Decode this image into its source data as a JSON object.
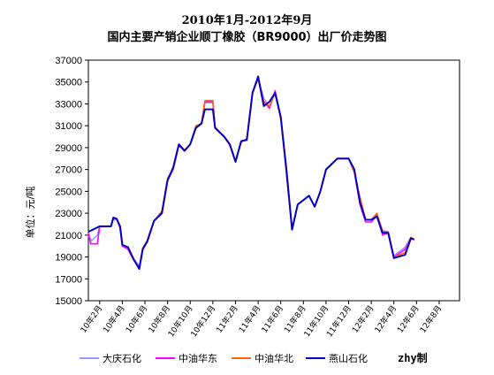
{
  "chart_data": {
    "type": "line",
    "title": "2010年1月-2012年9月",
    "subtitle": "国内主要产销企业顺丁橡胶（BR9000）出厂价走势图",
    "ylabel": "单位：元/吨",
    "xlabel": "",
    "ylim": [
      15000,
      37000
    ],
    "yticks": [
      "37000",
      "35000",
      "33000",
      "31000",
      "29000",
      "27000",
      "25000",
      "23000",
      "21000",
      "19000",
      "17000",
      "15000"
    ],
    "x_tick_labels": [
      "10年2月",
      "10年4月",
      "10年6月",
      "10年8月",
      "10年10月",
      "10年12月",
      "11年2月",
      "11年4月",
      "11年6月",
      "11年8月",
      "11年10月",
      "11年12月",
      "12年2月",
      "12年4月",
      "12年6月",
      "12年8月"
    ],
    "x_range": [
      0,
      32.8
    ],
    "grid": "none",
    "legend_position": "bottom",
    "credit": "zhy制",
    "series": [
      {
        "name": "大庆石化",
        "color": "#9999ff",
        "points": [
          [
            0,
            20900
          ],
          [
            0.3,
            20500
          ],
          [
            0.8,
            21000
          ],
          [
            1.0,
            21800
          ],
          [
            2.0,
            21800
          ],
          [
            2.2,
            22400
          ],
          [
            2.5,
            22400
          ],
          [
            2.8,
            21800
          ],
          [
            3.0,
            20200
          ],
          [
            3.5,
            19800
          ],
          [
            4.0,
            18800
          ],
          [
            4.5,
            18200
          ],
          [
            4.8,
            19800
          ],
          [
            5.2,
            20500
          ],
          [
            5.8,
            22300
          ],
          [
            6.5,
            23000
          ],
          [
            7.0,
            26000
          ],
          [
            7.5,
            27000
          ],
          [
            8.0,
            29200
          ],
          [
            8.5,
            28700
          ],
          [
            9.0,
            29300
          ],
          [
            9.5,
            30800
          ],
          [
            10.0,
            31200
          ],
          [
            10.3,
            33100
          ],
          [
            11.0,
            33100
          ],
          [
            11.2,
            30800
          ],
          [
            12.0,
            30000
          ],
          [
            12.5,
            29300
          ],
          [
            13.0,
            27800
          ],
          [
            13.5,
            29500
          ],
          [
            14.0,
            29800
          ],
          [
            14.5,
            34000
          ],
          [
            15.0,
            35300
          ],
          [
            15.5,
            33500
          ],
          [
            16.0,
            32700
          ],
          [
            16.5,
            34000
          ],
          [
            17.0,
            31800
          ],
          [
            17.5,
            26600
          ],
          [
            18.0,
            21500
          ],
          [
            18.5,
            23800
          ],
          [
            19.5,
            24600
          ],
          [
            20.0,
            23600
          ],
          [
            20.5,
            25000
          ],
          [
            21.0,
            27000
          ],
          [
            21.5,
            27500
          ],
          [
            22.0,
            28000
          ],
          [
            23.0,
            28000
          ],
          [
            23.5,
            27000
          ],
          [
            24.0,
            24000
          ],
          [
            24.5,
            22400
          ],
          [
            25.0,
            22400
          ],
          [
            25.5,
            22900
          ],
          [
            26.0,
            21200
          ],
          [
            26.5,
            21300
          ],
          [
            27.0,
            19100
          ],
          [
            28.0,
            19900
          ],
          [
            28.5,
            20800
          ],
          [
            28.8,
            20600
          ]
        ]
      },
      {
        "name": "中油华东",
        "color": "#ff00ff",
        "points": [
          [
            0,
            21200
          ],
          [
            0.2,
            20200
          ],
          [
            0.8,
            20200
          ],
          [
            1.0,
            21800
          ],
          [
            2.0,
            21800
          ],
          [
            2.2,
            22500
          ],
          [
            2.5,
            22500
          ],
          [
            2.8,
            21600
          ],
          [
            3.0,
            20000
          ],
          [
            3.5,
            19700
          ],
          [
            4.0,
            18700
          ],
          [
            4.5,
            18000
          ],
          [
            4.8,
            19800
          ],
          [
            5.2,
            20500
          ],
          [
            5.8,
            22300
          ],
          [
            6.5,
            23000
          ],
          [
            7.0,
            26000
          ],
          [
            7.5,
            27000
          ],
          [
            8.0,
            29200
          ],
          [
            8.5,
            28700
          ],
          [
            9.0,
            29300
          ],
          [
            9.5,
            30800
          ],
          [
            10.0,
            31200
          ],
          [
            10.3,
            33200
          ],
          [
            11.0,
            33200
          ],
          [
            11.2,
            30800
          ],
          [
            12.0,
            30000
          ],
          [
            12.5,
            29200
          ],
          [
            13.0,
            27700
          ],
          [
            13.5,
            29500
          ],
          [
            14.0,
            29800
          ],
          [
            14.5,
            34000
          ],
          [
            15.0,
            35300
          ],
          [
            15.5,
            33200
          ],
          [
            16.0,
            32600
          ],
          [
            16.5,
            34200
          ],
          [
            17.0,
            31800
          ],
          [
            17.5,
            26800
          ],
          [
            18.0,
            21500
          ],
          [
            18.5,
            23800
          ],
          [
            19.5,
            24600
          ],
          [
            20.0,
            23600
          ],
          [
            20.5,
            25000
          ],
          [
            21.0,
            27000
          ],
          [
            21.5,
            27500
          ],
          [
            22.0,
            28000
          ],
          [
            23.0,
            28000
          ],
          [
            23.5,
            26800
          ],
          [
            24.0,
            23800
          ],
          [
            24.5,
            22200
          ],
          [
            25.0,
            22200
          ],
          [
            25.5,
            22800
          ],
          [
            26.0,
            21000
          ],
          [
            26.5,
            21200
          ],
          [
            27.0,
            19000
          ],
          [
            28.0,
            19700
          ],
          [
            28.5,
            20700
          ],
          [
            28.8,
            20600
          ]
        ]
      },
      {
        "name": "中油华北",
        "color": "#ff6600",
        "points": [
          [
            0,
            21300
          ],
          [
            1.0,
            21800
          ],
          [
            2.0,
            21800
          ],
          [
            2.2,
            22500
          ],
          [
            2.5,
            22500
          ],
          [
            2.8,
            21700
          ],
          [
            3.0,
            20100
          ],
          [
            3.5,
            19800
          ],
          [
            4.0,
            18700
          ],
          [
            4.5,
            18000
          ],
          [
            4.8,
            19800
          ],
          [
            5.2,
            20500
          ],
          [
            5.8,
            22300
          ],
          [
            6.5,
            23200
          ],
          [
            7.0,
            26200
          ],
          [
            7.5,
            27000
          ],
          [
            8.0,
            29300
          ],
          [
            8.5,
            28800
          ],
          [
            9.0,
            29300
          ],
          [
            9.5,
            31000
          ],
          [
            10.0,
            31200
          ],
          [
            10.3,
            33300
          ],
          [
            11.0,
            33300
          ],
          [
            11.2,
            30900
          ],
          [
            12.0,
            30000
          ],
          [
            12.5,
            29200
          ],
          [
            13.0,
            27800
          ],
          [
            13.5,
            29500
          ],
          [
            14.0,
            29800
          ],
          [
            14.5,
            34000
          ],
          [
            15.0,
            35300
          ],
          [
            15.5,
            33100
          ],
          [
            16.0,
            32800
          ],
          [
            16.5,
            34000
          ],
          [
            17.0,
            31600
          ],
          [
            17.5,
            26700
          ],
          [
            18.0,
            21500
          ],
          [
            18.5,
            23800
          ],
          [
            19.5,
            24600
          ],
          [
            20.0,
            23600
          ],
          [
            20.5,
            25000
          ],
          [
            21.0,
            27000
          ],
          [
            21.5,
            27500
          ],
          [
            22.0,
            28000
          ],
          [
            23.0,
            28000
          ],
          [
            23.5,
            26700
          ],
          [
            24.0,
            24500
          ],
          [
            24.5,
            22400
          ],
          [
            25.0,
            22400
          ],
          [
            25.5,
            23000
          ],
          [
            26.0,
            21400
          ],
          [
            26.5,
            21300
          ],
          [
            27.0,
            19000
          ],
          [
            28.0,
            19400
          ],
          [
            28.5,
            20800
          ],
          [
            28.8,
            20600
          ]
        ]
      },
      {
        "name": "燕山石化",
        "color": "#0000cc",
        "points": [
          [
            0,
            21300
          ],
          [
            1.0,
            21800
          ],
          [
            2.0,
            21800
          ],
          [
            2.2,
            22600
          ],
          [
            2.5,
            22500
          ],
          [
            2.8,
            21800
          ],
          [
            3.0,
            20100
          ],
          [
            3.5,
            19900
          ],
          [
            4.0,
            18800
          ],
          [
            4.5,
            17900
          ],
          [
            4.8,
            19700
          ],
          [
            5.2,
            20400
          ],
          [
            5.8,
            22300
          ],
          [
            6.5,
            23000
          ],
          [
            7.0,
            26000
          ],
          [
            7.5,
            27200
          ],
          [
            8.0,
            29300
          ],
          [
            8.5,
            28700
          ],
          [
            9.0,
            29300
          ],
          [
            9.5,
            30800
          ],
          [
            10.0,
            31200
          ],
          [
            10.3,
            32500
          ],
          [
            11.0,
            32500
          ],
          [
            11.2,
            30800
          ],
          [
            12.0,
            30000
          ],
          [
            12.5,
            29300
          ],
          [
            13.0,
            27700
          ],
          [
            13.5,
            29600
          ],
          [
            14.0,
            29700
          ],
          [
            14.5,
            34000
          ],
          [
            15.0,
            35500
          ],
          [
            15.5,
            32800
          ],
          [
            16.0,
            33200
          ],
          [
            16.5,
            34000
          ],
          [
            17.0,
            31800
          ],
          [
            17.5,
            27000
          ],
          [
            18.0,
            21500
          ],
          [
            18.5,
            23800
          ],
          [
            19.5,
            24600
          ],
          [
            20.0,
            23600
          ],
          [
            20.5,
            25000
          ],
          [
            21.0,
            27000
          ],
          [
            21.5,
            27500
          ],
          [
            22.0,
            28000
          ],
          [
            23.0,
            28000
          ],
          [
            23.5,
            27000
          ],
          [
            24.0,
            24000
          ],
          [
            24.5,
            22400
          ],
          [
            25.0,
            22400
          ],
          [
            25.5,
            22700
          ],
          [
            26.0,
            21200
          ],
          [
            26.5,
            21200
          ],
          [
            27.0,
            18900
          ],
          [
            28.0,
            19200
          ],
          [
            28.5,
            20700
          ],
          [
            28.8,
            20600
          ]
        ]
      }
    ]
  }
}
